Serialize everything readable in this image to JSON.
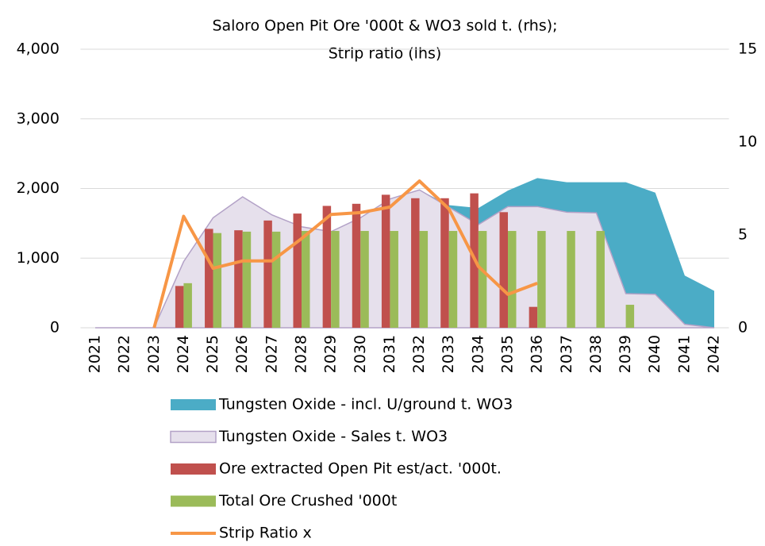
{
  "chart_data": {
    "type": "combo",
    "title": [
      "Saloro Open Pit Ore '000t & WO3 sold t. (rhs);",
      "Strip ratio (lhs)"
    ],
    "categories": [
      "2021",
      "2022",
      "2023",
      "2024",
      "2025",
      "2026",
      "2027",
      "2028",
      "2029",
      "2030",
      "2031",
      "2032",
      "2033",
      "2034",
      "2035",
      "2036",
      "2037",
      "2038",
      "2039",
      "2040",
      "2041",
      "2042"
    ],
    "ylim": [
      0,
      4000
    ],
    "yticks": [
      {
        "value": 0,
        "label": "0"
      },
      {
        "value": 1000,
        "label": "1,000"
      },
      {
        "value": 2000,
        "label": "2,000"
      },
      {
        "value": 3000,
        "label": "3,000"
      },
      {
        "value": 4000,
        "label": "4,000"
      }
    ],
    "y2lim": [
      0,
      15
    ],
    "y2ticks": [
      0,
      5,
      10,
      15
    ],
    "grid": true,
    "series": [
      {
        "name": "Tungsten Oxide - incl. U/ground t. WO3",
        "type": "area",
        "color": "#4bacc6",
        "values": [
          0,
          0,
          0,
          950,
          1580,
          1880,
          1620,
          1450,
          1380,
          1580,
          1850,
          1980,
          1760,
          1720,
          1970,
          2150,
          2090,
          2090,
          2090,
          1940,
          750,
          530
        ]
      },
      {
        "name": "Tungsten Oxide - Sales t. WO3",
        "type": "area",
        "color": "#e6e0ec",
        "stroke": "#b3a2c7",
        "values": [
          0,
          0,
          0,
          950,
          1580,
          1880,
          1620,
          1450,
          1380,
          1580,
          1850,
          1980,
          1730,
          1480,
          1740,
          1740,
          1660,
          1650,
          490,
          480,
          50,
          0
        ]
      },
      {
        "name": "Ore extracted Open Pit est/act. '000t.",
        "type": "bar",
        "color": "#c0504d",
        "values": [
          null,
          null,
          null,
          600,
          1420,
          1400,
          1540,
          1640,
          1750,
          1780,
          1910,
          1860,
          1860,
          1930,
          1660,
          300,
          null,
          null,
          null,
          null,
          null,
          null
        ]
      },
      {
        "name": "Total Ore Crushed '000t",
        "type": "bar",
        "color": "#9bbb59",
        "values": [
          null,
          null,
          null,
          640,
          1360,
          1380,
          1380,
          1390,
          1390,
          1390,
          1390,
          1390,
          1390,
          1390,
          1390,
          1390,
          1390,
          1390,
          330,
          null,
          null,
          null
        ]
      },
      {
        "name": "Strip Ratio x",
        "type": "line",
        "axis": "y2",
        "color": "#f79646",
        "values": [
          null,
          null,
          0,
          6.0,
          3.2,
          3.6,
          3.6,
          4.8,
          6.1,
          6.2,
          6.5,
          7.9,
          6.4,
          3.3,
          1.8,
          2.4,
          null,
          null,
          null,
          null,
          null,
          null
        ]
      }
    ]
  }
}
